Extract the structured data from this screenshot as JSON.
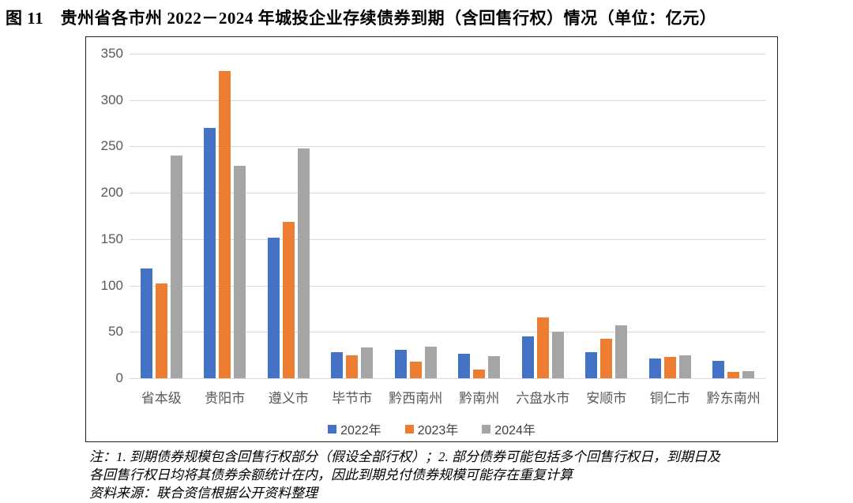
{
  "figure": {
    "title": "图 11　贵州省各市州 2022－2024 年城投企业存续债券到期（含回售行权）情况（单位：亿元）"
  },
  "chart_data": {
    "type": "bar",
    "title": "贵州省各市州2022－2024年城投企业存续债券到期（含回售行权）情况",
    "unit": "亿元",
    "categories": [
      "省本级",
      "贵阳市",
      "遵义市",
      "毕节市",
      "黔西南州",
      "黔南州",
      "六盘水市",
      "安顺市",
      "铜仁市",
      "黔东南州"
    ],
    "series": [
      {
        "name": "2022年",
        "color": "#4472C4",
        "values": [
          118,
          270,
          152,
          28,
          31,
          26,
          45,
          28,
          21,
          19
        ]
      },
      {
        "name": "2023年",
        "color": "#ED7D31",
        "values": [
          102,
          331,
          169,
          25,
          18,
          9,
          66,
          43,
          23,
          7
        ]
      },
      {
        "name": "2024年",
        "color": "#A5A5A5",
        "values": [
          240,
          229,
          248,
          33,
          34,
          24,
          50,
          57,
          25,
          8
        ]
      }
    ],
    "ylim": [
      0,
      350
    ],
    "ytick_step": 50,
    "grid": true,
    "legend_position": "bottom-center"
  },
  "notes": {
    "lines": [
      "注：1. 到期债券规模包含回售行权部分（假设全部行权）；2. 部分债券可能包括多个回售行权日，到期日及",
      "各回售行权日均将其债券余额统计在内，因此到期兑付债券规模可能存在重复计算",
      "资料来源：联合资信根据公开资料整理"
    ]
  }
}
